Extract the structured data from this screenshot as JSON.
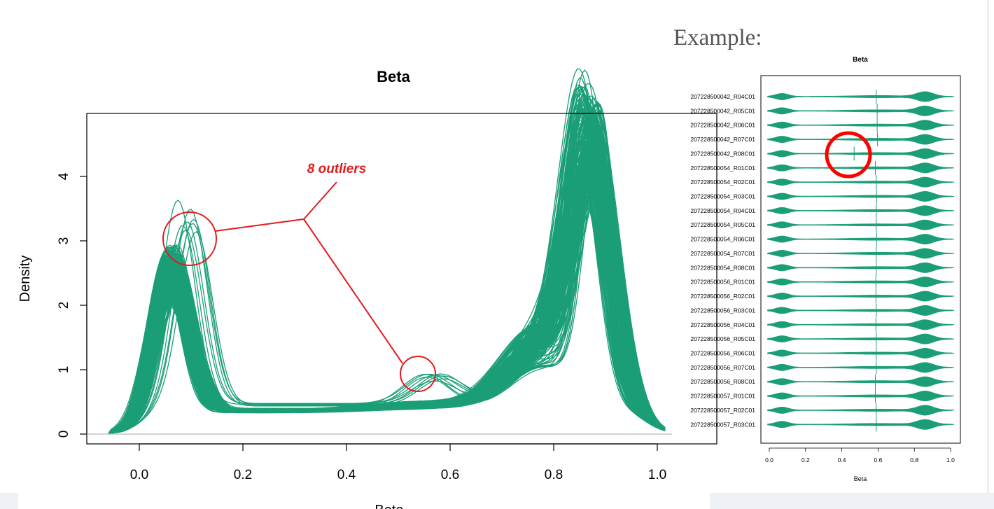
{
  "main_chart": {
    "title": "Beta",
    "xlabel": "Beta",
    "ylabel": "Density",
    "xticks": [
      "0.0",
      "0.2",
      "0.4",
      "0.6",
      "0.8",
      "1.0"
    ],
    "yticks": [
      "0",
      "1",
      "2",
      "3",
      "4"
    ],
    "annotation": "8 outliers"
  },
  "example": {
    "label": "Example:",
    "title": "Beta",
    "xlabel": "Beta",
    "xticks": [
      "0.0",
      "0.2",
      "0.4",
      "0.6",
      "0.8",
      "1.0"
    ],
    "samples": [
      "207228500042_R04C01",
      "207228500042_R05C01",
      "207228500042_R06C01",
      "207228500042_R07C01",
      "207228500042_R08C01",
      "207228500054_R01C01",
      "207228500054_R02C01",
      "207228500054_R03C01",
      "207228500054_R04C01",
      "207228500054_R05C01",
      "207228500054_R06C01",
      "207228500054_R07C01",
      "207228500054_R08C01",
      "207228500056_R01C01",
      "207228500056_R02C01",
      "207228500056_R03C01",
      "207228500056_R04C01",
      "207228500056_R05C01",
      "207228500056_R06C01",
      "207228500056_R07C01",
      "207228500056_R08C01",
      "207228500057_R01C01",
      "207228500057_R02C01",
      "207228500057_R03C01"
    ],
    "medians": [
      0.59,
      0.595,
      0.595,
      0.597,
      0.468,
      0.585,
      0.59,
      0.592,
      0.59,
      0.59,
      0.592,
      0.59,
      0.59,
      0.588,
      0.588,
      0.59,
      0.588,
      0.59,
      0.59,
      0.59,
      0.585,
      0.585,
      0.59,
      0.59
    ],
    "highlighted_sample": "207228500042_R08C01"
  },
  "colors": {
    "series": "#1b9e77",
    "annotation": "#e31a1c",
    "axis": "#000000"
  },
  "chart_data": [
    {
      "type": "line",
      "title": "Beta",
      "xlabel": "Beta",
      "ylabel": "Density",
      "xlim": [
        -0.1,
        1.05
      ],
      "ylim": [
        0,
        4.9
      ],
      "series_count_approx": 200,
      "typical_profile": {
        "x": [
          -0.05,
          0.0,
          0.05,
          0.1,
          0.2,
          0.3,
          0.4,
          0.5,
          0.6,
          0.7,
          0.8,
          0.85,
          0.9,
          1.0
        ],
        "y": [
          0.0,
          1.0,
          2.4,
          1.5,
          0.5,
          0.4,
          0.4,
          0.45,
          0.7,
          1.6,
          3.4,
          4.2,
          2.5,
          0.1
        ]
      },
      "outlier_profile": {
        "x": [
          -0.05,
          0.0,
          0.07,
          0.1,
          0.2,
          0.3,
          0.4,
          0.5,
          0.55,
          0.6,
          0.7,
          0.8,
          0.88,
          1.0
        ],
        "y": [
          0.0,
          0.9,
          3.2,
          2.8,
          0.8,
          0.5,
          0.5,
          0.7,
          0.9,
          0.8,
          1.0,
          2.6,
          4.6,
          0.1
        ]
      },
      "outliers": 8
    },
    {
      "type": "violin",
      "title": "Beta",
      "xlabel": "Beta",
      "xlim": [
        0,
        1
      ],
      "categories_key": "example.samples",
      "medians_key": "example.medians"
    }
  ]
}
